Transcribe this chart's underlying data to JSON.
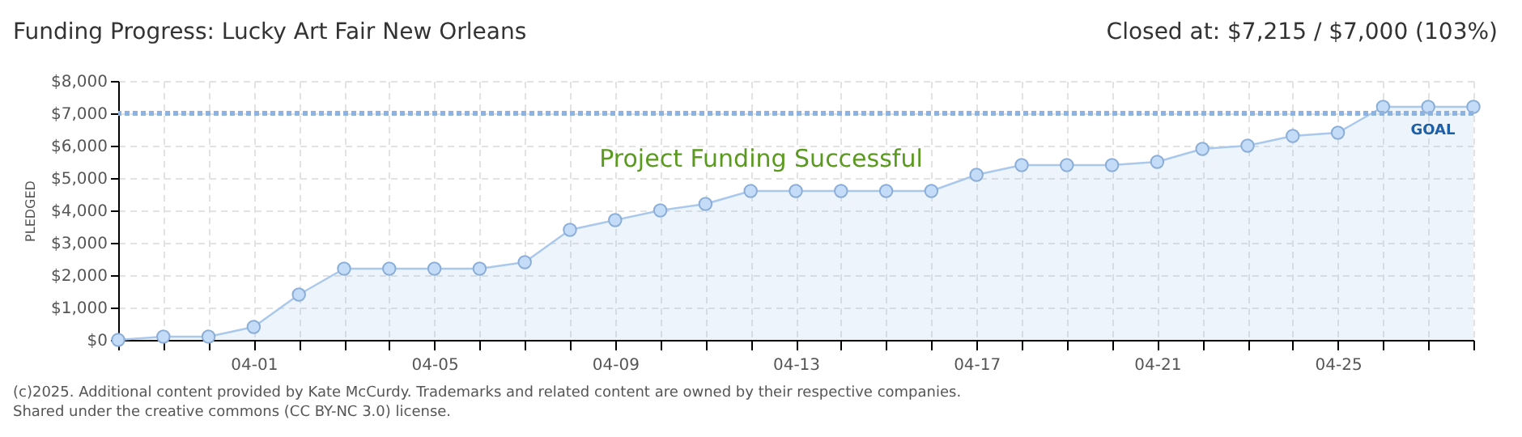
{
  "chart_data": {
    "type": "area",
    "title": "Funding Progress: Lucky Art Fair New Orleans",
    "ylabel": "PLEDGED",
    "x": [
      "2025-03-29",
      "2025-03-30",
      "2025-03-31",
      "2025-04-01",
      "2025-04-02",
      "2025-04-03",
      "2025-04-04",
      "2025-04-05",
      "2025-04-06",
      "2025-04-07",
      "2025-04-08",
      "2025-04-09",
      "2025-04-10",
      "2025-04-11",
      "2025-04-12",
      "2025-04-13",
      "2025-04-14",
      "2025-04-15",
      "2025-04-16",
      "2025-04-17",
      "2025-04-18",
      "2025-04-19",
      "2025-04-20",
      "2025-04-21",
      "2025-04-22",
      "2025-04-23",
      "2025-04-24",
      "2025-04-25",
      "2025-04-26",
      "2025-04-27",
      "2025-04-28"
    ],
    "series": [
      {
        "color": "#a9c8ec",
        "values": [
          0,
          100,
          100,
          400,
          1400,
          2200,
          2200,
          2200,
          2200,
          2400,
          3400,
          3700,
          4000,
          4200,
          4600,
          4600,
          4600,
          4600,
          4600,
          5100,
          5400,
          5400,
          5400,
          5500,
          5900,
          6000,
          6300,
          6400,
          7200,
          7200,
          7200
        ]
      }
    ],
    "xlim": [
      "2025-03-29",
      "2025-04-28"
    ],
    "xticks": [
      {
        "value": "2025-03-29",
        "label": null
      },
      {
        "value": "2025-03-30",
        "label": null
      },
      {
        "value": "2025-03-31",
        "label": null
      },
      {
        "value": "2025-04-01",
        "label": "04-01"
      },
      {
        "value": "2025-04-02",
        "label": null
      },
      {
        "value": "2025-04-03",
        "label": null
      },
      {
        "value": "2025-04-04",
        "label": null
      },
      {
        "value": "2025-04-05",
        "label": "04-05"
      },
      {
        "value": "2025-04-06",
        "label": null
      },
      {
        "value": "2025-04-07",
        "label": null
      },
      {
        "value": "2025-04-08",
        "label": null
      },
      {
        "value": "2025-04-09",
        "label": "04-09"
      },
      {
        "value": "2025-04-10",
        "label": null
      },
      {
        "value": "2025-04-11",
        "label": null
      },
      {
        "value": "2025-04-12",
        "label": null
      },
      {
        "value": "2025-04-13",
        "label": "04-13"
      },
      {
        "value": "2025-04-14",
        "label": null
      },
      {
        "value": "2025-04-15",
        "label": null
      },
      {
        "value": "2025-04-16",
        "label": null
      },
      {
        "value": "2025-04-17",
        "label": "04-17"
      },
      {
        "value": "2025-04-18",
        "label": null
      },
      {
        "value": "2025-04-19",
        "label": null
      },
      {
        "value": "2025-04-20",
        "label": null
      },
      {
        "value": "2025-04-21",
        "label": "04-21"
      },
      {
        "value": "2025-04-22",
        "label": null
      },
      {
        "value": "2025-04-23",
        "label": null
      },
      {
        "value": "2025-04-24",
        "label": null
      },
      {
        "value": "2025-04-25",
        "label": "04-25"
      },
      {
        "value": "2025-04-26",
        "label": null
      },
      {
        "value": "2025-04-27",
        "label": null
      },
      {
        "value": "2025-04-28",
        "label": null
      }
    ],
    "ylim": [
      0,
      8000
    ],
    "yticks": [
      {
        "value": 0,
        "label": "$0"
      },
      {
        "value": 1000,
        "label": "$1,000"
      },
      {
        "value": 2000,
        "label": "$2,000"
      },
      {
        "value": 3000,
        "label": "$3,000"
      },
      {
        "value": 4000,
        "label": "$4,000"
      },
      {
        "value": 5000,
        "label": "$5,000"
      },
      {
        "value": 6000,
        "label": "$6,000"
      },
      {
        "value": 7000,
        "label": "$7,000"
      },
      {
        "value": 8000,
        "label": "$8,000"
      }
    ],
    "ref_lines": [
      {
        "axis": "y",
        "value": 7000,
        "label": "GOAL",
        "color": "#8fb3e0",
        "line_style": "dotted"
      }
    ],
    "grid": true,
    "marker": "circle",
    "annotations": [
      "Closed at:  $7,215 /  $7,000 (103%)",
      "Project Funding Successful",
      "(c)2025. Additional content provided by Kate McCurdy. Trademarks and related content are owned by their respective companies.",
      "Shared under the creative commons (CC BY-NC 3.0) license."
    ]
  }
}
